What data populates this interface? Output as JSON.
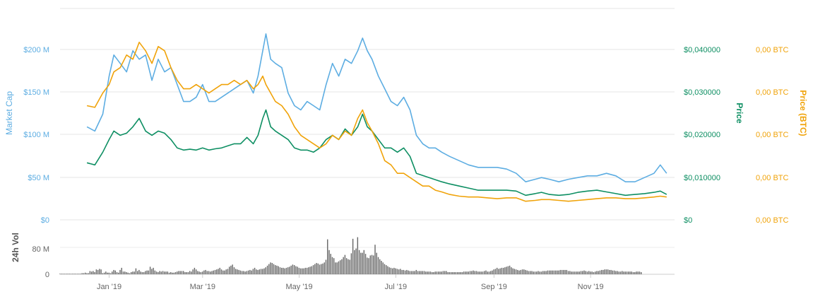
{
  "chart_data": {
    "type": "line",
    "x_ticks": [
      "Jan '19",
      "Mar '19",
      "May '19",
      "Jul '19",
      "Sep '19",
      "Nov '19"
    ],
    "axes": {
      "market_cap": {
        "label": "Market Cap",
        "ticks": [
          "$0",
          "$50 M",
          "$100 M",
          "$150 M",
          "$200 M"
        ],
        "range": [
          0,
          250
        ],
        "unit": "M USD",
        "color": "#5dade2"
      },
      "price": {
        "label": "Price",
        "ticks": [
          "$0",
          "$0,010000",
          "$0,020000",
          "$0,030000",
          "$0,040000"
        ],
        "range": [
          0,
          0.05
        ],
        "color": "#0e8f63"
      },
      "price_btc": {
        "label": "Price (BTC)",
        "ticks": [
          "0,00 BTC",
          "0,00 BTC",
          "0,00 BTC",
          "0,00 BTC",
          "0,00 BTC"
        ],
        "color": "#f0a30a"
      },
      "volume": {
        "label": "24h Vol",
        "ticks": [
          "0",
          "80 M"
        ],
        "range": [
          0,
          100
        ],
        "unit": "M USD",
        "color": "#666666"
      }
    },
    "series": [
      {
        "name": "Market Cap",
        "axis": "market_cap",
        "color": "#5dade2",
        "x": [
          "2018-12-18",
          "2018-12-23",
          "2018-12-28",
          "2019-01-01",
          "2019-01-04",
          "2019-01-08",
          "2019-01-12",
          "2019-01-16",
          "2019-01-20",
          "2019-01-24",
          "2019-01-28",
          "2019-02-01",
          "2019-02-05",
          "2019-02-09",
          "2019-02-13",
          "2019-02-17",
          "2019-02-21",
          "2019-02-25",
          "2019-03-01",
          "2019-03-05",
          "2019-03-09",
          "2019-03-13",
          "2019-03-17",
          "2019-03-21",
          "2019-03-25",
          "2019-03-29",
          "2019-04-02",
          "2019-04-05",
          "2019-04-08",
          "2019-04-10",
          "2019-04-13",
          "2019-04-16",
          "2019-04-20",
          "2019-04-24",
          "2019-04-28",
          "2019-05-02",
          "2019-05-06",
          "2019-05-10",
          "2019-05-14",
          "2019-05-18",
          "2019-05-22",
          "2019-05-26",
          "2019-05-30",
          "2019-06-03",
          "2019-06-07",
          "2019-06-10",
          "2019-06-13",
          "2019-06-16",
          "2019-06-20",
          "2019-06-24",
          "2019-06-28",
          "2019-07-02",
          "2019-07-06",
          "2019-07-10",
          "2019-07-14",
          "2019-07-18",
          "2019-07-22",
          "2019-07-26",
          "2019-07-30",
          "2019-08-04",
          "2019-08-10",
          "2019-08-16",
          "2019-08-22",
          "2019-08-28",
          "2019-09-03",
          "2019-09-09",
          "2019-09-15",
          "2019-09-21",
          "2019-09-27",
          "2019-10-01",
          "2019-10-06",
          "2019-10-12",
          "2019-10-18",
          "2019-10-24",
          "2019-10-30",
          "2019-11-05",
          "2019-11-11",
          "2019-11-17",
          "2019-11-23",
          "2019-11-29",
          "2019-12-05",
          "2019-12-11",
          "2019-12-15",
          "2019-12-19"
        ],
        "values": [
          110,
          105,
          125,
          170,
          195,
          185,
          175,
          200,
          190,
          195,
          165,
          190,
          175,
          180,
          160,
          140,
          140,
          145,
          160,
          140,
          140,
          145,
          150,
          155,
          160,
          165,
          150,
          170,
          200,
          220,
          190,
          185,
          180,
          150,
          135,
          130,
          140,
          135,
          130,
          160,
          185,
          170,
          190,
          185,
          200,
          215,
          200,
          190,
          170,
          155,
          140,
          135,
          145,
          130,
          100,
          90,
          85,
          85,
          80,
          75,
          70,
          65,
          62,
          62,
          62,
          60,
          55,
          45,
          48,
          50,
          48,
          45,
          48,
          50,
          52,
          52,
          55,
          52,
          45,
          45,
          50,
          55,
          65,
          55
        ]
      },
      {
        "name": "Price",
        "axis": "price",
        "color": "#0e8f63",
        "x": [
          "2018-12-18",
          "2018-12-23",
          "2018-12-28",
          "2019-01-01",
          "2019-01-04",
          "2019-01-08",
          "2019-01-12",
          "2019-01-16",
          "2019-01-20",
          "2019-01-24",
          "2019-01-28",
          "2019-02-01",
          "2019-02-05",
          "2019-02-09",
          "2019-02-13",
          "2019-02-17",
          "2019-02-21",
          "2019-02-25",
          "2019-03-01",
          "2019-03-05",
          "2019-03-09",
          "2019-03-13",
          "2019-03-17",
          "2019-03-21",
          "2019-03-25",
          "2019-03-29",
          "2019-04-02",
          "2019-04-05",
          "2019-04-08",
          "2019-04-10",
          "2019-04-13",
          "2019-04-16",
          "2019-04-20",
          "2019-04-24",
          "2019-04-28",
          "2019-05-02",
          "2019-05-06",
          "2019-05-10",
          "2019-05-14",
          "2019-05-18",
          "2019-05-22",
          "2019-05-26",
          "2019-05-30",
          "2019-06-03",
          "2019-06-07",
          "2019-06-10",
          "2019-06-13",
          "2019-06-16",
          "2019-06-20",
          "2019-06-24",
          "2019-06-28",
          "2019-07-02",
          "2019-07-06",
          "2019-07-10",
          "2019-07-14",
          "2019-07-18",
          "2019-07-22",
          "2019-07-26",
          "2019-07-30",
          "2019-08-04",
          "2019-08-10",
          "2019-08-16",
          "2019-08-22",
          "2019-08-28",
          "2019-09-03",
          "2019-09-09",
          "2019-09-15",
          "2019-09-21",
          "2019-09-27",
          "2019-10-01",
          "2019-10-06",
          "2019-10-12",
          "2019-10-18",
          "2019-10-24",
          "2019-10-30",
          "2019-11-05",
          "2019-11-11",
          "2019-11-17",
          "2019-11-23",
          "2019-11-29",
          "2019-12-05",
          "2019-12-11",
          "2019-12-15",
          "2019-12-19"
        ],
        "values": [
          0.0135,
          0.013,
          0.016,
          0.019,
          0.021,
          0.02,
          0.0205,
          0.022,
          0.024,
          0.021,
          0.02,
          0.021,
          0.0205,
          0.019,
          0.017,
          0.0165,
          0.0167,
          0.0165,
          0.017,
          0.0165,
          0.0168,
          0.017,
          0.0175,
          0.018,
          0.018,
          0.0195,
          0.018,
          0.02,
          0.024,
          0.026,
          0.022,
          0.021,
          0.02,
          0.019,
          0.017,
          0.0165,
          0.0165,
          0.016,
          0.017,
          0.019,
          0.02,
          0.019,
          0.0215,
          0.02,
          0.022,
          0.025,
          0.022,
          0.021,
          0.019,
          0.017,
          0.017,
          0.016,
          0.017,
          0.015,
          0.011,
          0.0105,
          0.01,
          0.0095,
          0.009,
          0.0085,
          0.008,
          0.0075,
          0.007,
          0.007,
          0.007,
          0.007,
          0.0068,
          0.0058,
          0.0062,
          0.0065,
          0.006,
          0.0058,
          0.006,
          0.0065,
          0.0068,
          0.007,
          0.0066,
          0.0062,
          0.0058,
          0.006,
          0.0062,
          0.0065,
          0.0068,
          0.006
        ]
      },
      {
        "name": "Price (BTC)",
        "axis": "market_cap",
        "color": "#f0a30a",
        "x": [
          "2018-12-18",
          "2018-12-23",
          "2018-12-28",
          "2019-01-01",
          "2019-01-04",
          "2019-01-08",
          "2019-01-12",
          "2019-01-16",
          "2019-01-20",
          "2019-01-24",
          "2019-01-28",
          "2019-02-01",
          "2019-02-05",
          "2019-02-09",
          "2019-02-13",
          "2019-02-17",
          "2019-02-21",
          "2019-02-25",
          "2019-03-01",
          "2019-03-05",
          "2019-03-09",
          "2019-03-13",
          "2019-03-17",
          "2019-03-21",
          "2019-03-25",
          "2019-03-29",
          "2019-04-02",
          "2019-04-05",
          "2019-04-08",
          "2019-04-10",
          "2019-04-13",
          "2019-04-16",
          "2019-04-20",
          "2019-04-24",
          "2019-04-28",
          "2019-05-02",
          "2019-05-06",
          "2019-05-10",
          "2019-05-14",
          "2019-05-18",
          "2019-05-22",
          "2019-05-26",
          "2019-05-30",
          "2019-06-03",
          "2019-06-07",
          "2019-06-10",
          "2019-06-13",
          "2019-06-16",
          "2019-06-20",
          "2019-06-24",
          "2019-06-28",
          "2019-07-02",
          "2019-07-06",
          "2019-07-10",
          "2019-07-14",
          "2019-07-18",
          "2019-07-22",
          "2019-07-26",
          "2019-07-30",
          "2019-08-04",
          "2019-08-10",
          "2019-08-16",
          "2019-08-22",
          "2019-08-28",
          "2019-09-03",
          "2019-09-09",
          "2019-09-15",
          "2019-09-21",
          "2019-09-27",
          "2019-10-01",
          "2019-10-06",
          "2019-10-12",
          "2019-10-18",
          "2019-10-24",
          "2019-10-30",
          "2019-11-05",
          "2019-11-11",
          "2019-11-17",
          "2019-11-23",
          "2019-11-29",
          "2019-12-05",
          "2019-12-11",
          "2019-12-15",
          "2019-12-19"
        ],
        "values": [
          135,
          133,
          150,
          160,
          175,
          180,
          195,
          190,
          210,
          200,
          185,
          205,
          200,
          180,
          165,
          155,
          155,
          160,
          155,
          150,
          155,
          160,
          160,
          165,
          160,
          165,
          155,
          160,
          170,
          160,
          150,
          140,
          135,
          125,
          110,
          100,
          95,
          90,
          85,
          90,
          100,
          95,
          105,
          100,
          120,
          130,
          115,
          105,
          90,
          70,
          65,
          55,
          55,
          50,
          45,
          40,
          40,
          35,
          33,
          30,
          28,
          27,
          27,
          26,
          25,
          26,
          26,
          22,
          23,
          24,
          24,
          23,
          22,
          23,
          24,
          25,
          26,
          26,
          25,
          25,
          26,
          27,
          28,
          27
        ]
      }
    ],
    "volume": {
      "name": "24h Vol",
      "start": "2018-12-01",
      "step_days": 1,
      "values": [
        1,
        1,
        1,
        1,
        1,
        1,
        1,
        1,
        1,
        1,
        1,
        1,
        1,
        1,
        2,
        2,
        3,
        2,
        2,
        6,
        5,
        6,
        4,
        9,
        8,
        10,
        9,
        2,
        3,
        5,
        3,
        3,
        2,
        5,
        8,
        7,
        4,
        3,
        8,
        12,
        5,
        5,
        4,
        3,
        2,
        4,
        5,
        5,
        11,
        6,
        8,
        5,
        4,
        4,
        6,
        7,
        7,
        14,
        10,
        12,
        7,
        5,
        4,
        6,
        5,
        6,
        5,
        5,
        5,
        3,
        4,
        3,
        3,
        4,
        5,
        6,
        6,
        6,
        6,
        4,
        4,
        4,
        6,
        5,
        9,
        12,
        9,
        6,
        5,
        4,
        5,
        7,
        8,
        6,
        6,
        5,
        6,
        7,
        8,
        9,
        10,
        12,
        9,
        7,
        7,
        9,
        10,
        14,
        16,
        18,
        13,
        10,
        9,
        8,
        7,
        6,
        6,
        5,
        6,
        7,
        8,
        7,
        10,
        12,
        9,
        8,
        9,
        10,
        10,
        11,
        13,
        16,
        19,
        22,
        21,
        19,
        17,
        16,
        15,
        13,
        12,
        12,
        11,
        12,
        13,
        14,
        16,
        18,
        17,
        15,
        14,
        12,
        11,
        11,
        11,
        12,
        12,
        13,
        14,
        15,
        17,
        19,
        21,
        20,
        18,
        19,
        20,
        22,
        27,
        65,
        45,
        38,
        32,
        30,
        22,
        22,
        24,
        26,
        28,
        32,
        36,
        30,
        28,
        27,
        39,
        66,
        45,
        48,
        69,
        45,
        40,
        40,
        45,
        38,
        31,
        30,
        35,
        36,
        35,
        55,
        40,
        32,
        28,
        25,
        22,
        19,
        17,
        15,
        13,
        12,
        11,
        12,
        11,
        10,
        9,
        10,
        8,
        8,
        7,
        8,
        7,
        6,
        6,
        6,
        6,
        8,
        6,
        6,
        6,
        6,
        6,
        5,
        5,
        5,
        5,
        4,
        4,
        5,
        5,
        5,
        5,
        5,
        6,
        6,
        6,
        4,
        4,
        4,
        4,
        4,
        4,
        4,
        4,
        4,
        4,
        5,
        5,
        5,
        5,
        6,
        6,
        7,
        6,
        6,
        5,
        5,
        5,
        5,
        6,
        7,
        5,
        5,
        6,
        7,
        9,
        10,
        12,
        10,
        11,
        12,
        12,
        13,
        14,
        15,
        16,
        13,
        11,
        10,
        9,
        8,
        7,
        8,
        9,
        9,
        8,
        7,
        6,
        6,
        6,
        5,
        5,
        5,
        6,
        5,
        5,
        6,
        6,
        6,
        7,
        7,
        7,
        7,
        7,
        7,
        7,
        7,
        8,
        8,
        8,
        8,
        8,
        6,
        6,
        5,
        5,
        5,
        5,
        5,
        5,
        6,
        6,
        7,
        6,
        5,
        6,
        5,
        5,
        4,
        5,
        6,
        6,
        7,
        8,
        8,
        9,
        9,
        9,
        8,
        8,
        7,
        7,
        6,
        6,
        5,
        5,
        6,
        5,
        5,
        5,
        5,
        5,
        5,
        4,
        4,
        5,
        5,
        5,
        4
      ]
    },
    "grid": true,
    "legend": "none"
  }
}
